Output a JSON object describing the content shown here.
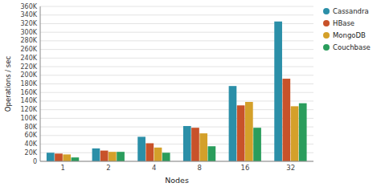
{
  "chart_data": {
    "type": "bar",
    "x_label": "Nodes",
    "y_label": "Operations / sec",
    "categories": [
      "1",
      "2",
      "4",
      "8",
      "16",
      "32"
    ],
    "series": [
      {
        "name": "Cassandra",
        "color": "#2b8fa8",
        "values": [
          20000,
          30000,
          57000,
          82000,
          175000,
          325000
        ]
      },
      {
        "name": "HBase",
        "color": "#c8522a",
        "values": [
          18000,
          25000,
          42000,
          78000,
          130000,
          192000
        ]
      },
      {
        "name": "MongoDB",
        "color": "#d4a02a",
        "values": [
          16000,
          22000,
          32000,
          65000,
          138000,
          128000
        ]
      },
      {
        "name": "Couchbase",
        "color": "#2a9d5c",
        "values": [
          9000,
          22000,
          20000,
          35000,
          78000,
          135000
        ]
      }
    ],
    "ylim": [
      0,
      360000
    ],
    "yticks": [
      0,
      {
        "value": 20000,
        "label": "20K"
      },
      {
        "value": 40000,
        "label": "40K"
      },
      {
        "value": 60000,
        "label": "60K"
      },
      {
        "value": 80000,
        "label": "80K"
      },
      {
        "value": 100000,
        "label": "100K"
      },
      {
        "value": 120000,
        "label": "120K"
      },
      {
        "value": 140000,
        "label": "140K"
      },
      {
        "value": 160000,
        "label": "160K"
      },
      {
        "value": 180000,
        "label": "180K"
      },
      {
        "value": 200000,
        "label": "200K"
      },
      {
        "value": 220000,
        "label": "220K"
      },
      {
        "value": 240000,
        "label": "240K"
      },
      {
        "value": 260000,
        "label": "260K"
      },
      {
        "value": 280000,
        "label": "280K"
      },
      {
        "value": 300000,
        "label": "300K"
      },
      {
        "value": 320000,
        "label": "320K"
      },
      {
        "value": 340000,
        "label": "340K"
      },
      {
        "value": 360000,
        "label": "360K"
      }
    ],
    "grid": true,
    "legend": "right"
  }
}
